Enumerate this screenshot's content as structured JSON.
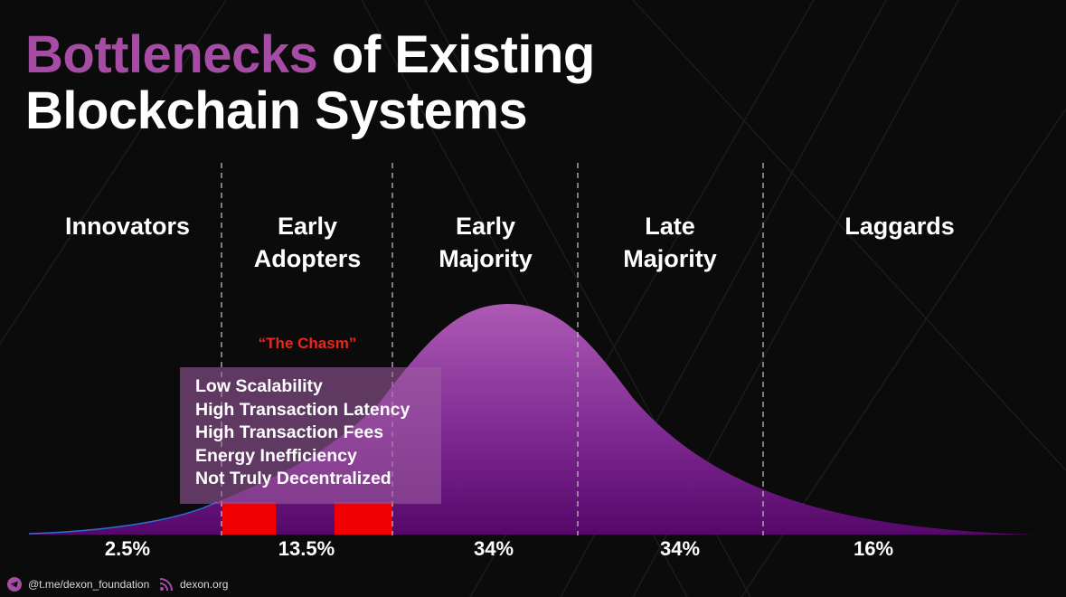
{
  "title": {
    "accent": "Bottlenecks",
    "rest_line1": " of Existing",
    "line2": "Blockchain Systems"
  },
  "segments": [
    {
      "line1": "Innovators",
      "line2": "",
      "percent": "2.5%"
    },
    {
      "line1": "Early",
      "line2": "Adopters",
      "percent": "13.5%"
    },
    {
      "line1": "Early",
      "line2": "Majority",
      "percent": "34%"
    },
    {
      "line1": "Late",
      "line2": "Majority",
      "percent": "34%"
    },
    {
      "line1": "Laggards",
      "line2": "",
      "percent": "16%"
    }
  ],
  "chasm_label": "“The Chasm”",
  "bottlenecks": [
    "Low Scalability",
    "High Transaction Latency",
    "High Transaction Fees",
    "Energy Inefficiency",
    "Not Truly Decentralized"
  ],
  "footer": {
    "telegram": "@t.me/dexon_foundation",
    "website": "dexon.org"
  },
  "colors": {
    "accent": "#a64ca4",
    "curve_top": "#a956b0",
    "curve_bottom": "#5c0b6e",
    "chasm": "#e8281e",
    "box": "#9c5ca0"
  },
  "icons": {
    "telegram": "telegram-icon",
    "website": "rss-icon"
  }
}
